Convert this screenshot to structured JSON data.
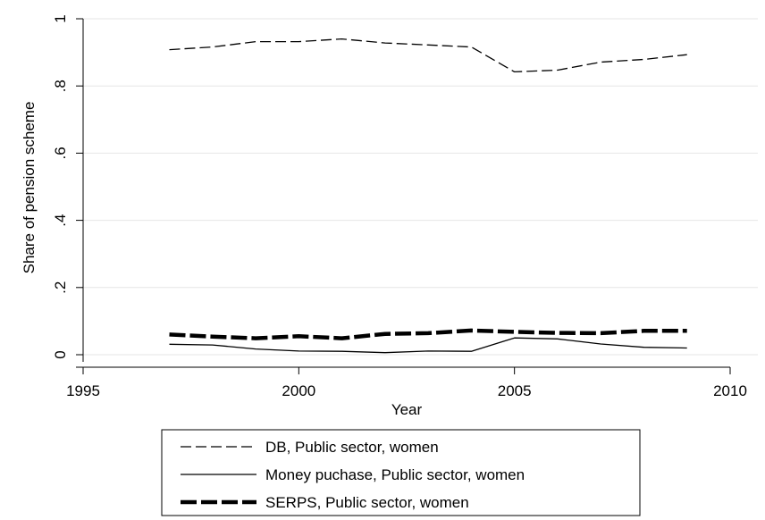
{
  "chart_data": {
    "type": "line",
    "title": "",
    "xlabel": "Year",
    "ylabel": "Share of pension scheme",
    "xlim": [
      1995,
      2010
    ],
    "ylim": [
      0,
      1
    ],
    "xticks": [
      {
        "value": 1995,
        "label": "1995"
      },
      {
        "value": 2000,
        "label": "2000"
      },
      {
        "value": 2005,
        "label": "2005"
      },
      {
        "value": 2010,
        "label": "2010"
      }
    ],
    "yticks": [
      {
        "value": 0,
        "label": "0"
      },
      {
        "value": 0.2,
        "label": ".2"
      },
      {
        "value": 0.4,
        "label": ".4"
      },
      {
        "value": 0.6,
        "label": ".6"
      },
      {
        "value": 0.8,
        "label": ".8"
      },
      {
        "value": 1,
        "label": "1"
      }
    ],
    "grid": true,
    "legend_position": "bottom",
    "x": [
      1997,
      1998,
      1999,
      2000,
      2001,
      2002,
      2003,
      2004,
      2005,
      2006,
      2007,
      2008,
      2009
    ],
    "series": [
      {
        "name": "DB, Public sector, women",
        "style": "dashed",
        "values": [
          0.908,
          0.916,
          0.932,
          0.932,
          0.94,
          0.928,
          0.922,
          0.916,
          0.842,
          0.847,
          0.871,
          0.879,
          0.893
        ]
      },
      {
        "name": "Money puchase, Public sector, women",
        "style": "solid",
        "values": [
          0.031,
          0.029,
          0.017,
          0.011,
          0.01,
          0.006,
          0.011,
          0.01,
          0.05,
          0.047,
          0.032,
          0.022,
          0.02
        ]
      },
      {
        "name": "SERPS, Public sector, women",
        "style": "thick-dashed",
        "values": [
          0.06,
          0.054,
          0.049,
          0.055,
          0.049,
          0.062,
          0.064,
          0.072,
          0.068,
          0.065,
          0.064,
          0.071,
          0.071
        ]
      }
    ]
  },
  "colors": {
    "background": "#ffffff",
    "line": "#000000",
    "grid": "#e6e6e6"
  }
}
